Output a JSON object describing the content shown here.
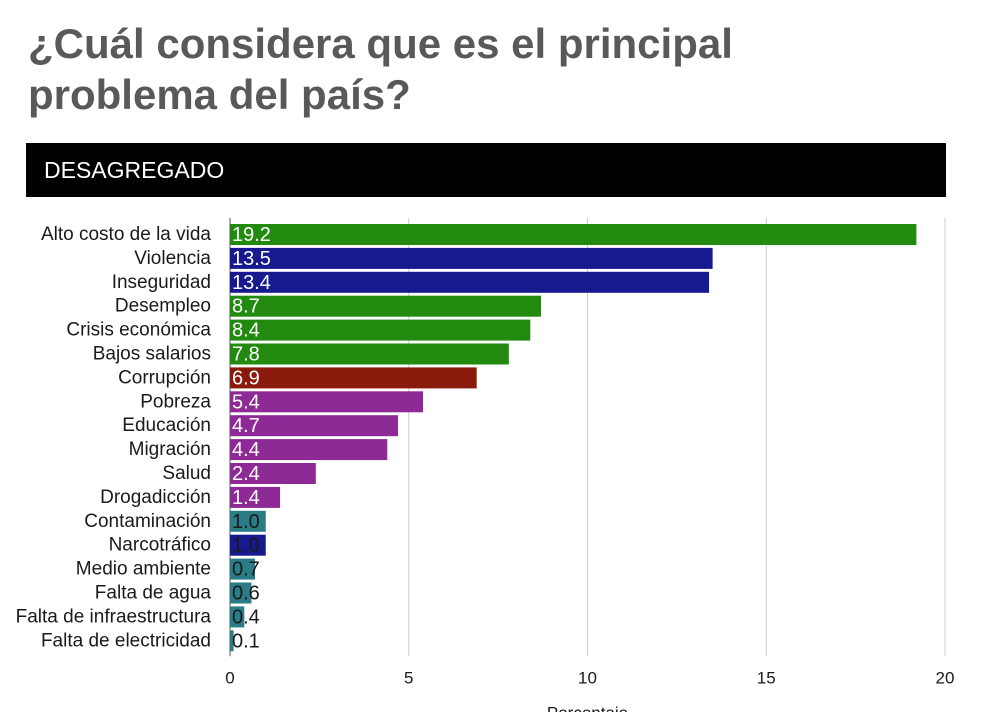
{
  "title": "¿Cuál considera que es el principal problema del país?",
  "subtitle": "DESAGREGADO",
  "colors": {
    "green": "#228b0f",
    "navy": "#171a8e",
    "dark_red": "#8a1a0b",
    "purple": "#8e2a95",
    "teal": "#2a7d86",
    "grid": "#cccccc",
    "text": "#1a1a1a"
  },
  "chart_data": {
    "type": "bar",
    "orientation": "horizontal",
    "categories": [
      "Alto costo de la vida",
      "Violencia",
      "Inseguridad",
      "Desempleo",
      "Crisis económica",
      "Bajos salarios",
      "Corrupción",
      "Pobreza",
      "Educación",
      "Migración",
      "Salud",
      "Drogadicción",
      "Contaminación",
      "Narcotráfico",
      "Medio ambiente",
      "Falta de agua",
      "Falta de infraestructura",
      "Falta de electricidad"
    ],
    "values": [
      19.2,
      13.5,
      13.4,
      8.7,
      8.4,
      7.8,
      6.9,
      5.4,
      4.7,
      4.4,
      2.4,
      1.4,
      1.0,
      1.0,
      0.7,
      0.6,
      0.4,
      0.1
    ],
    "value_labels": [
      "19.2",
      "13.5",
      "13.4",
      "8.7",
      "8.4",
      "7.8",
      "6.9",
      "5.4",
      "4.7",
      "4.4",
      "2.4",
      "1.4",
      "1.0",
      "1.0",
      "0.7",
      "0.6",
      "0.4",
      "0.1"
    ],
    "bar_colors": [
      "#228b0f",
      "#171a8e",
      "#171a8e",
      "#228b0f",
      "#228b0f",
      "#228b0f",
      "#8a1a0b",
      "#8e2a95",
      "#8e2a95",
      "#8e2a95",
      "#8e2a95",
      "#8e2a95",
      "#2a7d86",
      "#171a8e",
      "#2a7d86",
      "#2a7d86",
      "#2a7d86",
      "#2a7d86"
    ],
    "xlim": [
      0,
      20
    ],
    "xticks": [
      0,
      5,
      10,
      15,
      20
    ],
    "xlabel": "Porcentaje",
    "ylabel": "",
    "grid": "vertical"
  }
}
